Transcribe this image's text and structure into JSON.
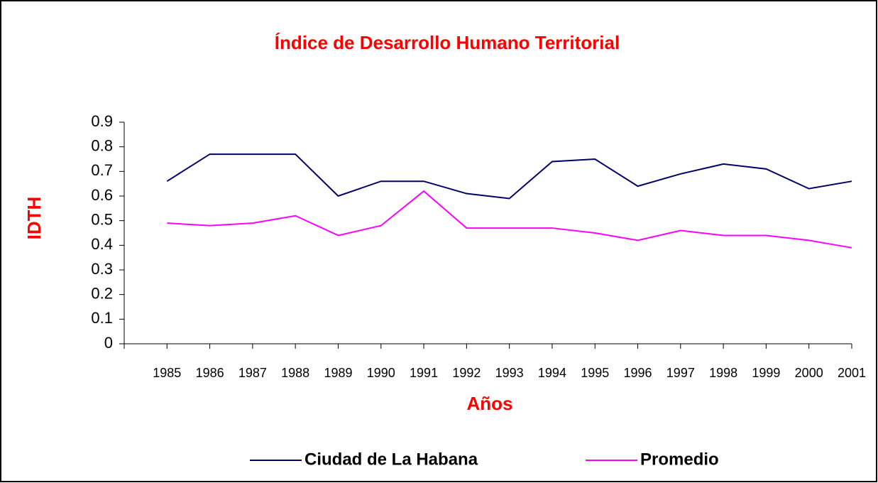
{
  "chart_data": {
    "type": "line",
    "title": "Índice de Desarrollo Humano Territorial",
    "x_label": "Años",
    "y_label": "IDTH",
    "categories": [
      null,
      "1985",
      "1986",
      "1987",
      "1988",
      "1989",
      "1990",
      "1991",
      "1992",
      "1993",
      "1994",
      "1995",
      "1996",
      "1997",
      "1998",
      "1999",
      "2000",
      "2001"
    ],
    "series": [
      {
        "name": "Ciudad de La Habana",
        "color": "#000066",
        "values": [
          null,
          0.66,
          0.77,
          0.77,
          0.77,
          0.6,
          0.66,
          0.66,
          0.61,
          0.59,
          0.74,
          0.75,
          0.64,
          0.69,
          0.73,
          0.71,
          0.63,
          0.66
        ]
      },
      {
        "name": "Promedio",
        "color": "#ff00ff",
        "values": [
          null,
          0.49,
          0.48,
          0.49,
          0.52,
          0.44,
          0.48,
          0.62,
          0.47,
          0.47,
          0.47,
          0.45,
          0.42,
          0.46,
          0.44,
          0.44,
          0.42,
          0.39
        ]
      }
    ],
    "ylim": [
      0,
      0.9
    ],
    "yticks": [
      0,
      0.1,
      0.2,
      0.3,
      0.4,
      0.5,
      0.6,
      0.7,
      0.8,
      0.9
    ],
    "grid": false,
    "legend": "bottom"
  }
}
